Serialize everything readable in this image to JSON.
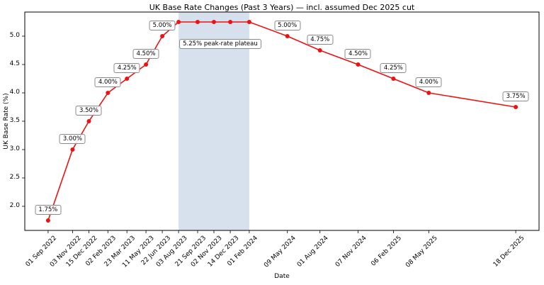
{
  "chart_data": {
    "type": "line",
    "title": "UK Base Rate Changes (Past 3 Years) — incl. assumed Dec 2025 cut",
    "xlabel": "Date",
    "ylabel": "UK Base Rate (%)",
    "line_color": "#ee1111",
    "marker": "o",
    "grid": false,
    "legend": null,
    "ylim": [
      1.575,
      5.425
    ],
    "y_ticks": [
      2.0,
      2.5,
      3.0,
      3.5,
      4.0,
      4.5,
      5.0
    ],
    "x_range_days": [
      -60,
      1264
    ],
    "points": [
      {
        "date": "01 Sep 2022",
        "day": 0,
        "rate": 1.75,
        "label": "1.75%"
      },
      {
        "date": "03 Nov 2022",
        "day": 63,
        "rate": 3.0,
        "label": "3.00%"
      },
      {
        "date": "15 Dec 2022",
        "day": 105,
        "rate": 3.5,
        "label": "3.50%"
      },
      {
        "date": "02 Feb 2023",
        "day": 154,
        "rate": 4.0,
        "label": "4.00%"
      },
      {
        "date": "23 Mar 2023",
        "day": 203,
        "rate": 4.25,
        "label": "4.25%"
      },
      {
        "date": "11 May 2023",
        "day": 252,
        "rate": 4.5,
        "label": "4.50%"
      },
      {
        "date": "22 Jun 2023",
        "day": 294,
        "rate": 5.0,
        "label": "5.00%"
      },
      {
        "date": "03 Aug 2023",
        "day": 336,
        "rate": 5.25,
        "label": null
      },
      {
        "date": "21 Sep 2023",
        "day": 385,
        "rate": 5.25,
        "label": null
      },
      {
        "date": "02 Nov 2023",
        "day": 427,
        "rate": 5.25,
        "label": null
      },
      {
        "date": "14 Dec 2023",
        "day": 469,
        "rate": 5.25,
        "label": null
      },
      {
        "date": "01 Feb 2024",
        "day": 518,
        "rate": 5.25,
        "label": null
      },
      {
        "date": "09 May 2024",
        "day": 616,
        "rate": 5.0,
        "label": "5.00%"
      },
      {
        "date": "01 Aug 2024",
        "day": 700,
        "rate": 4.75,
        "label": "4.75%"
      },
      {
        "date": "07 Nov 2024",
        "day": 798,
        "rate": 4.5,
        "label": "4.50%"
      },
      {
        "date": "06 Feb 2025",
        "day": 889,
        "rate": 4.25,
        "label": "4.25%"
      },
      {
        "date": "08 May 2025",
        "day": 980,
        "rate": 4.0,
        "label": "4.00%"
      },
      {
        "date": "18 Dec 2025",
        "day": 1204,
        "rate": 3.75,
        "label": "3.75%"
      }
    ],
    "plateau_band": {
      "label": "5.25% peak-rate plateau",
      "start_date": "03 Aug 2023",
      "end_date": "01 Feb 2024",
      "start_day": 336,
      "end_day": 518,
      "color": "#b0c4de",
      "opacity": 0.5,
      "label_y": 4.86
    }
  }
}
